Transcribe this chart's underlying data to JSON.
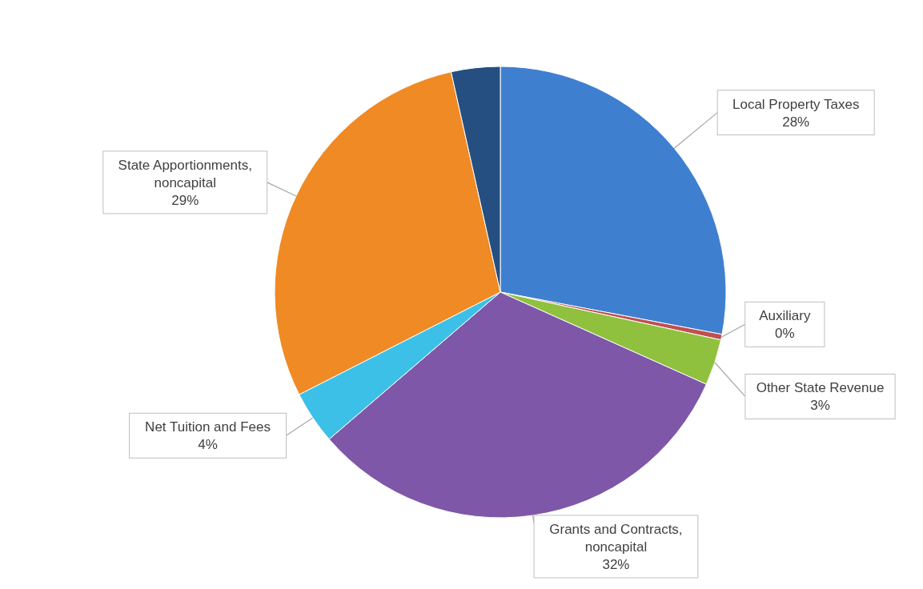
{
  "chart_data": {
    "type": "pie",
    "categories": [
      "Local Property Taxes",
      "Auxiliary",
      "Other State Revenue",
      "Grants and Contracts, noncapital",
      "Net Tuition and Fees",
      "State Apportionments, noncapital",
      null
    ],
    "values": [
      28,
      0.4,
      3.3,
      32,
      3.8,
      29,
      3.5
    ],
    "value_labels": [
      "28%",
      "0%",
      "3%",
      "32%",
      "4%",
      "29%",
      null
    ],
    "colors": [
      "#3f7fcf",
      "#c0504d",
      "#8fc13f",
      "#7e57a8",
      "#3cc0e8",
      "#f08a24",
      "#254f80"
    ]
  }
}
